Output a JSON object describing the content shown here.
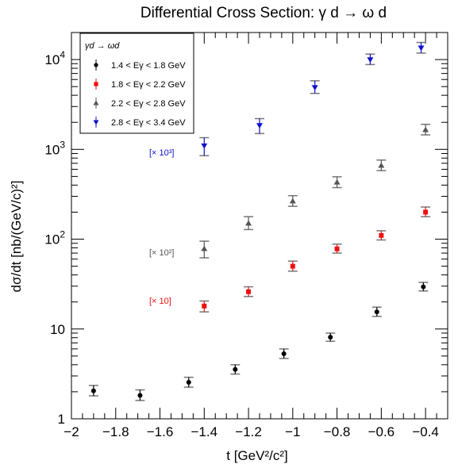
{
  "chart_data": {
    "type": "scatter",
    "title": "Differential Cross Section: γ d → ω d",
    "xlabel": "t [GeV²/c²]",
    "ylabel": "dσ/dt [nb/(GeV/c)²]",
    "xlim": [
      -2,
      -0.3
    ],
    "ylim": [
      1,
      20000
    ],
    "yscale": "log",
    "x_ticks": [
      "-2",
      "-1.8",
      "-1.6",
      "-1.4",
      "-1.2",
      "-1",
      "-0.8",
      "-0.6",
      "-0.4"
    ],
    "y_ticks": [
      "1",
      "10",
      "10^2",
      "10^3",
      "10^4"
    ],
    "grid": false,
    "legend": {
      "position": "top-left",
      "title": "γd → ωd",
      "entries": [
        "1.4 < Eγ < 1.8 GeV",
        "1.8 < Eγ < 2.2 GeV",
        "2.2 < Eγ < 2.8 GeV",
        "2.8 < Eγ < 3.4 GeV"
      ]
    },
    "scale_labels": [
      "[× 10³]",
      "[× 10²]",
      "[× 10]"
    ],
    "series": [
      {
        "name": "1.4 < Eγ < 1.8 GeV",
        "color": "#000000",
        "marker": "circle",
        "points": [
          {
            "x": -1.9,
            "y": 2.05,
            "lo": 1.8,
            "hi": 2.35
          },
          {
            "x": -1.69,
            "y": 1.82,
            "lo": 1.6,
            "hi": 2.1
          },
          {
            "x": -1.47,
            "y": 2.55,
            "lo": 2.25,
            "hi": 2.9
          },
          {
            "x": -1.26,
            "y": 3.55,
            "lo": 3.15,
            "hi": 4.0
          },
          {
            "x": -1.04,
            "y": 5.3,
            "lo": 4.7,
            "hi": 6.0
          },
          {
            "x": -0.83,
            "y": 8.1,
            "lo": 7.3,
            "hi": 9.0
          },
          {
            "x": -0.62,
            "y": 15.5,
            "lo": 13.8,
            "hi": 17.5
          },
          {
            "x": -0.41,
            "y": 29.5,
            "lo": 26.5,
            "hi": 33.0
          }
        ]
      },
      {
        "name": "1.8 < Eγ < 2.2 GeV",
        "color": "#ee1111",
        "marker": "square",
        "points": [
          {
            "x": -1.4,
            "y": 18.0,
            "lo": 15.5,
            "hi": 20.5
          },
          {
            "x": -1.2,
            "y": 26.0,
            "lo": 23.0,
            "hi": 29.5
          },
          {
            "x": -1.0,
            "y": 50.0,
            "lo": 44.0,
            "hi": 57.0
          },
          {
            "x": -0.8,
            "y": 78.0,
            "lo": 70.0,
            "hi": 88.0
          },
          {
            "x": -0.6,
            "y": 110.0,
            "lo": 98.0,
            "hi": 124.0
          },
          {
            "x": -0.4,
            "y": 200.0,
            "lo": 178.0,
            "hi": 228.0
          }
        ]
      },
      {
        "name": "2.2 < Eγ < 2.8 GeV",
        "color": "#555555",
        "marker": "triangle-up",
        "points": [
          {
            "x": -1.4,
            "y": 78.0,
            "lo": 62.0,
            "hi": 95.0
          },
          {
            "x": -1.2,
            "y": 150.0,
            "lo": 128.0,
            "hi": 178.0
          },
          {
            "x": -1.0,
            "y": 265.0,
            "lo": 232.0,
            "hi": 305.0
          },
          {
            "x": -0.8,
            "y": 430.0,
            "lo": 375.0,
            "hi": 495.0
          },
          {
            "x": -0.6,
            "y": 660.0,
            "lo": 580.0,
            "hi": 760.0
          },
          {
            "x": -0.4,
            "y": 1650.0,
            "lo": 1450.0,
            "hi": 1900.0
          }
        ]
      },
      {
        "name": "2.8 < Eγ < 3.4 GeV",
        "color": "#1111cc",
        "marker": "triangle-down",
        "points": [
          {
            "x": -1.4,
            "y": 1100.0,
            "lo": 850.0,
            "hi": 1350.0
          },
          {
            "x": -1.15,
            "y": 1850.0,
            "lo": 1500.0,
            "hi": 2200.0
          },
          {
            "x": -0.9,
            "y": 4900.0,
            "lo": 4200.0,
            "hi": 5800.0
          },
          {
            "x": -0.65,
            "y": 10000.0,
            "lo": 8800.0,
            "hi": 11500.0
          },
          {
            "x": -0.42,
            "y": 13500.0,
            "lo": 11800.0,
            "hi": 15500.0
          }
        ]
      }
    ]
  }
}
